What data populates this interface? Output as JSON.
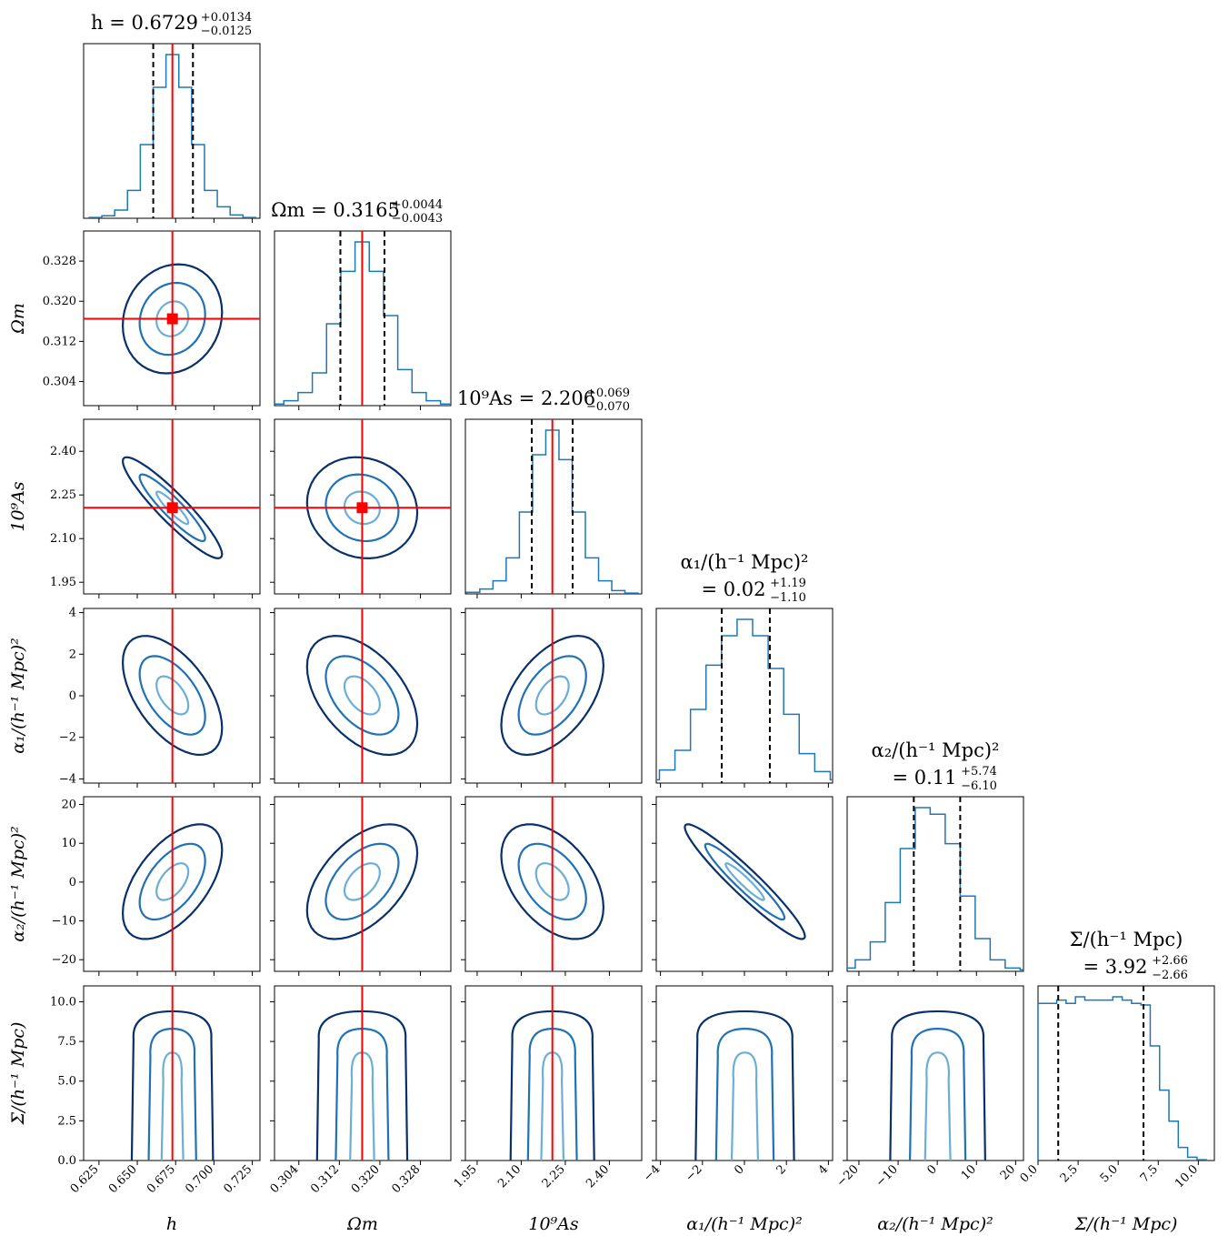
{
  "chart_data": {
    "type": "corner",
    "parameters": [
      {
        "label": "h",
        "ticks": [
          "0.625",
          "0.650",
          "0.675",
          "0.700",
          "0.725"
        ],
        "tick_values": [
          0.625,
          0.65,
          0.675,
          0.7,
          0.725
        ],
        "range": [
          0.615,
          0.73
        ],
        "median": 0.6729,
        "plus": 0.0134,
        "minus": 0.0125,
        "truth": 0.6729,
        "title": "h = 0.6729",
        "title_sup": "+0.0134",
        "title_sub": "−0.0125",
        "hist": [
          0.005,
          0.015,
          0.05,
          0.17,
          0.45,
          0.8,
          1.0,
          0.8,
          0.45,
          0.17,
          0.07,
          0.02,
          0.005
        ]
      },
      {
        "label": "Ωm",
        "ticks": [
          "0.304",
          "0.312",
          "0.320",
          "0.328"
        ],
        "tick_values": [
          0.304,
          0.312,
          0.32,
          0.328
        ],
        "range": [
          0.2992,
          0.334
        ],
        "median": 0.3165,
        "plus": 0.0044,
        "minus": 0.0043,
        "truth": 0.3165,
        "title": "Ωm = 0.3165",
        "title_sup": "+0.0044",
        "title_sub": "−0.0043",
        "hist": [
          0.01,
          0.03,
          0.08,
          0.2,
          0.5,
          0.82,
          1.0,
          0.82,
          0.55,
          0.22,
          0.08,
          0.03,
          0.01
        ]
      },
      {
        "label": "10⁹As",
        "ticks": [
          "1.95",
          "2.10",
          "2.25",
          "2.40"
        ],
        "tick_values": [
          1.95,
          2.1,
          2.25,
          2.4
        ],
        "range": [
          1.91,
          2.51
        ],
        "median": 2.206,
        "plus": 0.069,
        "minus": 0.07,
        "truth": 2.206,
        "title": "10⁹As = 2.206",
        "title_sup": "+0.069",
        "title_sub": "−0.070",
        "hist": [
          0.01,
          0.03,
          0.08,
          0.22,
          0.5,
          0.85,
          1.0,
          0.82,
          0.5,
          0.22,
          0.08,
          0.02,
          0.005
        ]
      },
      {
        "label": "α₁/(h⁻¹ Mpc)²",
        "ticks": [
          "−4",
          "−2",
          "0",
          "2",
          "4"
        ],
        "tick_values": [
          -4,
          -2,
          0,
          2,
          4
        ],
        "range": [
          -4.2,
          4.2
        ],
        "median": 0.02,
        "plus": 1.19,
        "minus": 1.1,
        "truth": null,
        "title": "α₁/(h⁻¹ Mpc)²",
        "title2": "= 0.02",
        "title_sup": "+1.19",
        "title_sub": "−1.10",
        "hist": [
          0.02,
          0.08,
          0.2,
          0.45,
          0.72,
          0.9,
          1.0,
          0.9,
          0.7,
          0.42,
          0.18,
          0.07,
          0.02
        ]
      },
      {
        "label": "α₂/(h⁻¹ Mpc)²",
        "ticks": [
          "−20",
          "−10",
          "0",
          "10",
          "20"
        ],
        "tick_values": [
          -20,
          -10,
          0,
          10,
          20
        ],
        "range": [
          -23,
          22
        ],
        "median": 0.11,
        "plus": 5.74,
        "minus": 6.1,
        "truth": null,
        "title": "α₂/(h⁻¹ Mpc)²",
        "title2": "= 0.11",
        "title_sup": "+5.74",
        "title_sub": "−6.10",
        "hist": [
          0.02,
          0.07,
          0.18,
          0.42,
          0.75,
          1.0,
          0.96,
          0.78,
          0.46,
          0.2,
          0.07,
          0.02,
          0.01
        ]
      },
      {
        "label": "Σ/(h⁻¹ Mpc)",
        "ticks": [
          "0.0",
          "2.5",
          "5.0",
          "7.5",
          "10.0"
        ],
        "tick_values": [
          0,
          2.5,
          5,
          7.5,
          10
        ],
        "range": [
          0,
          11
        ],
        "median": 3.92,
        "plus": 2.66,
        "minus": 2.66,
        "truth": null,
        "title": "Σ/(h⁻¹ Mpc)",
        "title2": "= 3.92",
        "title_sup": "+2.66",
        "title_sub": "−2.66",
        "hist": [
          0.96,
          0.96,
          0.98,
          0.96,
          1.0,
          0.98,
          0.98,
          0.98,
          1.0,
          0.98,
          0.96,
          0.95,
          0.7,
          0.43,
          0.24,
          0.08,
          0.02,
          0.005
        ]
      }
    ],
    "row_ticks": {
      "1": {
        "labels": [
          "0.304",
          "0.312",
          "0.320",
          "0.328"
        ]
      },
      "2": {
        "labels": [
          "1.95",
          "2.10",
          "2.25",
          "2.40"
        ]
      },
      "3": {
        "labels": [
          "−4",
          "−2",
          "0",
          "2",
          "4"
        ]
      },
      "4": {
        "labels": [
          "−20",
          "−10",
          "0",
          "10",
          "20"
        ]
      },
      "5": {
        "labels": [
          "0.0",
          "2.5",
          "5.0",
          "7.5",
          "10.0"
        ]
      }
    },
    "contour_levels": 3,
    "colors": {
      "hist": "#1f77b4",
      "c1": "#6baed6",
      "c2": "#2171b5",
      "c3": "#08306b",
      "truth": "#ff0000",
      "quantile": "#000000"
    }
  }
}
